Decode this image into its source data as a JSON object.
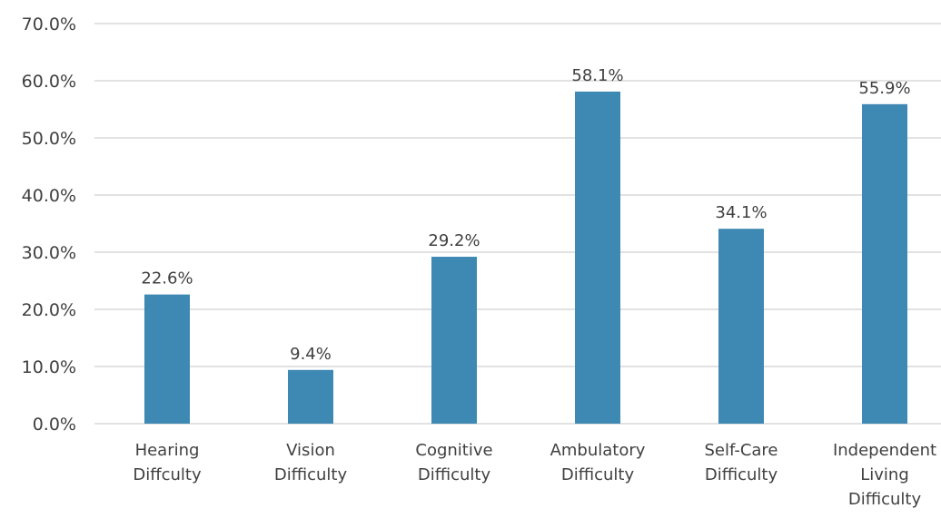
{
  "chart_data": {
    "type": "bar",
    "categories": [
      [
        "Hearing",
        "Diffculty"
      ],
      [
        "Vision",
        "Difficulty"
      ],
      [
        "Cognitive",
        "Difficulty"
      ],
      [
        "Ambulatory",
        "Difficulty"
      ],
      [
        "Self-Care",
        "Difficulty"
      ],
      [
        "Independent",
        "Living",
        "Difficulty"
      ]
    ],
    "values": [
      22.6,
      9.4,
      29.2,
      58.1,
      34.1,
      55.9
    ],
    "data_labels": [
      "22.6%",
      "9.4%",
      "29.2%",
      "58.1%",
      "34.1%",
      "55.9%"
    ],
    "title": "",
    "xlabel": "",
    "ylabel": "",
    "ylim": [
      0,
      70
    ],
    "yticks": [
      0,
      10,
      20,
      30,
      40,
      50,
      60,
      70
    ],
    "ytick_labels": [
      "0.0%",
      "10.0%",
      "20.0%",
      "30.0%",
      "40.0%",
      "50.0%",
      "60.0%",
      "70.0%"
    ],
    "grid": true,
    "legend": "none",
    "colors": {
      "bar": "#3e88b4",
      "grid": "#d9d9d9",
      "text": "#404040"
    }
  }
}
